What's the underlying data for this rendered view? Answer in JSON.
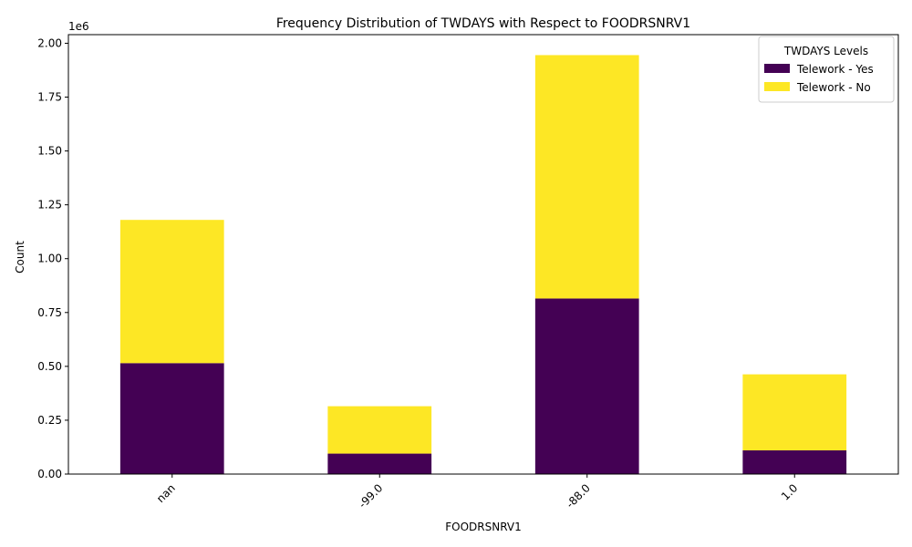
{
  "chart_data": {
    "type": "bar",
    "stacked": true,
    "title": "Frequency Distribution of TWDAYS with Respect to FOODRSNRV1",
    "xlabel": "FOODRSNRV1",
    "ylabel": "Count",
    "y_offset_label": "1e6",
    "categories": [
      "nan",
      "-99.0",
      "-88.0",
      "1.0"
    ],
    "series": [
      {
        "name": "Telework - Yes",
        "color": "#440154",
        "values": [
          515000,
          95000,
          815000,
          110000
        ]
      },
      {
        "name": "Telework - No",
        "color": "#fde725",
        "values": [
          665000,
          220000,
          1130000,
          353000
        ]
      }
    ],
    "ylim": [
      0,
      2040000
    ],
    "yticks": [
      0,
      250000,
      500000,
      750000,
      1000000,
      1250000,
      1500000,
      1750000,
      2000000
    ],
    "ytick_labels": [
      "0.00",
      "0.25",
      "0.50",
      "0.75",
      "1.00",
      "1.25",
      "1.50",
      "1.75",
      "2.00"
    ],
    "legend": {
      "title": "TWDAYS Levels",
      "placement": "top-right"
    },
    "grid": false
  }
}
